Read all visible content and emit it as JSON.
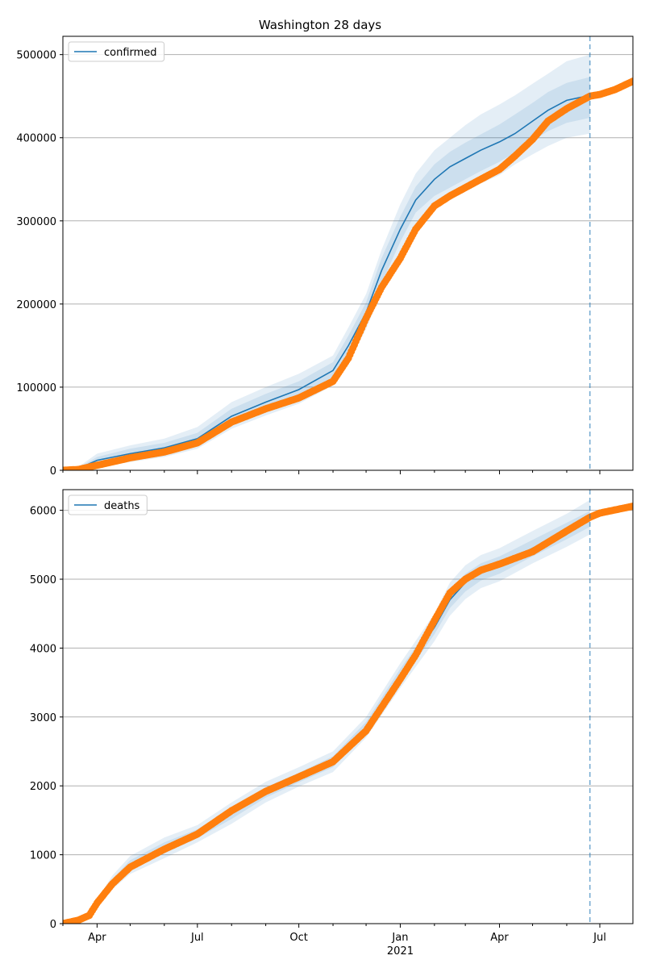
{
  "chart_data": [
    {
      "type": "line",
      "title": "Washington 28 days",
      "xlabel": "",
      "ylabel": "",
      "ylim": [
        0,
        522000
      ],
      "xlim": [
        "2020-03-01",
        "2021-07-31"
      ],
      "grid": "y",
      "legend": {
        "position": "upper-left",
        "entries": [
          "confirmed"
        ]
      },
      "y_ticks": [
        0,
        100000,
        200000,
        300000,
        400000,
        500000
      ],
      "y_tick_labels": [
        "0",
        "100000",
        "200000",
        "300000",
        "400000",
        "500000"
      ],
      "forecast_line_date": "2021-06-22",
      "colors": {
        "model": "#1f77b4",
        "observed": "#ff7f0e",
        "band": "#1f77b4"
      },
      "series": [
        {
          "name": "confirmed",
          "role": "model median",
          "x": [
            "2020-03-01",
            "2020-03-15",
            "2020-04-01",
            "2020-05-01",
            "2020-06-01",
            "2020-07-01",
            "2020-08-01",
            "2020-09-01",
            "2020-10-01",
            "2020-11-01",
            "2020-11-15",
            "2020-12-01",
            "2020-12-15",
            "2021-01-01",
            "2021-01-15",
            "2021-02-01",
            "2021-02-15",
            "2021-03-01",
            "2021-03-15",
            "2021-04-01",
            "2021-04-15",
            "2021-05-01",
            "2021-05-15",
            "2021-06-01",
            "2021-06-22"
          ],
          "values": [
            0,
            2000,
            12000,
            20000,
            27000,
            38000,
            65000,
            82000,
            97000,
            120000,
            150000,
            190000,
            240000,
            290000,
            325000,
            350000,
            365000,
            375000,
            385000,
            395000,
            405000,
            420000,
            433000,
            445000,
            451000
          ],
          "bands": [
            {
              "lower": [
                0,
                500,
                4000,
                10000,
                16000,
                26000,
                50000,
                66000,
                80000,
                102000,
                130000,
                170000,
                215000,
                263000,
                297000,
                315000,
                325000,
                335000,
                345000,
                355000,
                368000,
                380000,
                390000,
                400000,
                405000
              ],
              "upper": [
                0,
                4000,
                20000,
                30000,
                38000,
                52000,
                82000,
                100000,
                116000,
                138000,
                172000,
                212000,
                265000,
                320000,
                357000,
                385000,
                400000,
                415000,
                428000,
                440000,
                451000,
                465000,
                477000,
                492000,
                500000
              ]
            },
            {
              "lower": [
                0,
                1000,
                7000,
                14000,
                20000,
                31000,
                56000,
                72000,
                87000,
                110000,
                138000,
                178000,
                225000,
                275000,
                310000,
                330000,
                340000,
                350000,
                360000,
                371000,
                382000,
                396000,
                408000,
                418000,
                424000
              ],
              "upper": [
                0,
                3000,
                16000,
                26000,
                33000,
                45000,
                74000,
                92000,
                107000,
                130000,
                162000,
                202000,
                255000,
                305000,
                341000,
                368000,
                383000,
                394000,
                404000,
                416000,
                428000,
                442000,
                455000,
                466000,
                473000
              ]
            }
          ]
        },
        {
          "name": "",
          "role": "observed",
          "x": [
            "2020-03-01",
            "2020-03-15",
            "2020-04-01",
            "2020-05-01",
            "2020-06-01",
            "2020-07-01",
            "2020-08-01",
            "2020-09-01",
            "2020-10-01",
            "2020-11-01",
            "2020-11-15",
            "2020-12-01",
            "2020-12-15",
            "2021-01-01",
            "2021-01-15",
            "2021-02-01",
            "2021-02-15",
            "2021-03-01",
            "2021-03-15",
            "2021-04-01",
            "2021-04-15",
            "2021-05-01",
            "2021-05-15",
            "2021-06-01",
            "2021-06-22",
            "2021-07-01",
            "2021-07-15",
            "2021-07-31"
          ],
          "values": [
            0,
            1000,
            6000,
            15000,
            22000,
            33000,
            58000,
            74000,
            87000,
            107000,
            135000,
            183000,
            220000,
            255000,
            290000,
            318000,
            330000,
            340000,
            350000,
            362000,
            378000,
            398000,
            420000,
            435000,
            450000,
            452000,
            458000,
            468000
          ]
        }
      ]
    },
    {
      "type": "line",
      "title": "",
      "xlabel": "",
      "ylabel": "",
      "ylim": [
        0,
        6300
      ],
      "xlim": [
        "2020-03-01",
        "2021-07-31"
      ],
      "grid": "y",
      "legend": {
        "position": "upper-left",
        "entries": [
          "deaths"
        ]
      },
      "y_ticks": [
        0,
        1000,
        2000,
        3000,
        4000,
        5000,
        6000
      ],
      "y_tick_labels": [
        "0",
        "1000",
        "2000",
        "3000",
        "4000",
        "5000",
        "6000"
      ],
      "x_ticks": [
        "2020-04-01",
        "2020-07-01",
        "2020-10-01",
        "2021-01-01",
        "2021-04-01",
        "2021-07-01"
      ],
      "x_tick_labels": [
        "Apr",
        "Jul",
        "Oct",
        "Jan",
        "Apr",
        "Jul"
      ],
      "x_year_label": "2021",
      "forecast_line_date": "2021-06-22",
      "series": [
        {
          "name": "deaths",
          "role": "model median",
          "x": [
            "2020-04-01",
            "2020-04-15",
            "2020-05-01",
            "2020-06-01",
            "2020-07-01",
            "2020-08-01",
            "2020-09-01",
            "2020-10-01",
            "2020-11-01",
            "2020-12-01",
            "2021-01-01",
            "2021-02-01",
            "2021-02-15",
            "2021-03-01",
            "2021-03-15",
            "2021-04-01",
            "2021-05-01",
            "2021-06-01",
            "2021-06-22"
          ],
          "values": [
            300,
            600,
            850,
            1100,
            1300,
            1600,
            1900,
            2120,
            2350,
            2850,
            3600,
            4300,
            4700,
            4950,
            5100,
            5200,
            5450,
            5700,
            5870
          ],
          "bands": [
            {
              "lower": [
                250,
                500,
                720,
                950,
                1180,
                1450,
                1760,
                1990,
                2200,
                2700,
                3420,
                4100,
                4470,
                4710,
                4870,
                4970,
                5230,
                5470,
                5650
              ],
              "upper": [
                350,
                700,
                980,
                1250,
                1430,
                1760,
                2060,
                2270,
                2500,
                3000,
                3780,
                4500,
                4950,
                5200,
                5350,
                5450,
                5700,
                5950,
                6150
              ]
            },
            {
              "lower": [
                270,
                550,
                780,
                1020,
                1240,
                1520,
                1830,
                2050,
                2270,
                2770,
                3500,
                4200,
                4580,
                4820,
                4980,
                5080,
                5330,
                5580,
                5760
              ],
              "upper": [
                330,
                650,
                920,
                1180,
                1370,
                1680,
                1980,
                2190,
                2430,
                2930,
                3700,
                4400,
                4820,
                5080,
                5230,
                5330,
                5570,
                5820,
                5990
              ]
            }
          ]
        },
        {
          "name": "",
          "role": "observed",
          "x": [
            "2020-03-01",
            "2020-03-15",
            "2020-03-25",
            "2020-04-01",
            "2020-04-15",
            "2020-05-01",
            "2020-06-01",
            "2020-07-01",
            "2020-08-01",
            "2020-09-01",
            "2020-10-01",
            "2020-11-01",
            "2020-12-01",
            "2021-01-01",
            "2021-01-15",
            "2021-02-01",
            "2021-02-15",
            "2021-03-01",
            "2021-03-15",
            "2021-04-01",
            "2021-05-01",
            "2021-06-01",
            "2021-06-22",
            "2021-07-01",
            "2021-07-31"
          ],
          "values": [
            0,
            50,
            120,
            300,
            580,
            820,
            1080,
            1300,
            1640,
            1920,
            2130,
            2350,
            2800,
            3550,
            3900,
            4400,
            4800,
            5000,
            5130,
            5220,
            5400,
            5700,
            5900,
            5960,
            6060
          ]
        }
      ]
    }
  ]
}
